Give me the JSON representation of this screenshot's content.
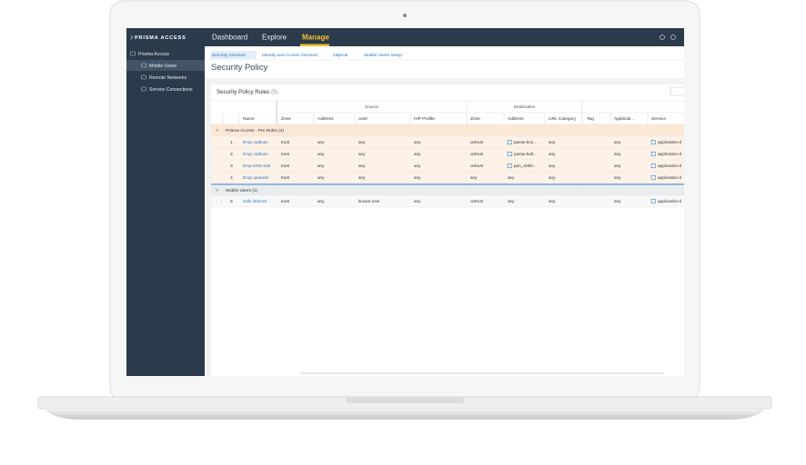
{
  "nav": {
    "logo": "PRISMA ACCESS",
    "items": [
      "Dashboard",
      "Explore",
      "Manage"
    ],
    "active": 2
  },
  "sidebar": {
    "items": [
      "Prisma Access",
      "Mobile Users",
      "Remote Networks",
      "Service Connections"
    ],
    "active": 1
  },
  "breadcrumbs": [
    "Security Services",
    "Identity and Access Services",
    "Objects",
    "Mobile Users Setup"
  ],
  "page_title": "Security Policy",
  "panel": {
    "title": "Security Policy Rules",
    "count": "(5)"
  },
  "table": {
    "groups": [
      "Source",
      "Destination"
    ],
    "columns": [
      "Name",
      "Zone",
      "Address",
      "User",
      "HIP Profile",
      "Zone",
      "Address",
      "URL Category",
      "Tag",
      "Applicati...",
      "Service"
    ],
    "sections": [
      {
        "label": "Prisma Access - Pre Rules (4)",
        "rows": [
          {
            "num": 1,
            "name": "Drop outboun",
            "src_zone": "trust",
            "src_address": "any",
            "user": "any",
            "hip_profile": "any",
            "dst_zone": "untrust",
            "dst_address": "pamw-kno...",
            "url_category": "any",
            "application": "any",
            "service": "application-d"
          },
          {
            "num": 2,
            "name": "Drop outboun",
            "src_zone": "trust",
            "src_address": "any",
            "user": "any",
            "hip_profile": "any",
            "dst_zone": "untrust",
            "dst_address": "pamw-bull...",
            "url_category": "any",
            "application": "any",
            "service": "application-d"
          },
          {
            "num": 3,
            "name": "Drop DNS sink",
            "src_zone": "trust",
            "src_address": "any",
            "user": "any",
            "hip_profile": "any",
            "dst_zone": "untrust",
            "dst_address": "pan_sinkh...",
            "url_category": "any",
            "application": "any",
            "service": "application-d"
          },
          {
            "num": 4,
            "name": "Drop quaranti",
            "src_zone": "trust",
            "src_address": "any",
            "user": "any",
            "hip_profile": "any",
            "dst_zone": "any",
            "dst_address": "any",
            "url_category": "any",
            "application": "any",
            "service": "application-d"
          }
        ]
      },
      {
        "label": "Mobile Users (1)",
        "rows": [
          {
            "num": 5,
            "name": "Safe internet",
            "src_zone": "trust",
            "src_address": "any",
            "user": "known-user",
            "hip_profile": "any",
            "dst_zone": "untrust",
            "dst_address": "any",
            "url_category": "any",
            "application": "any",
            "service": "application-d"
          }
        ]
      }
    ]
  }
}
